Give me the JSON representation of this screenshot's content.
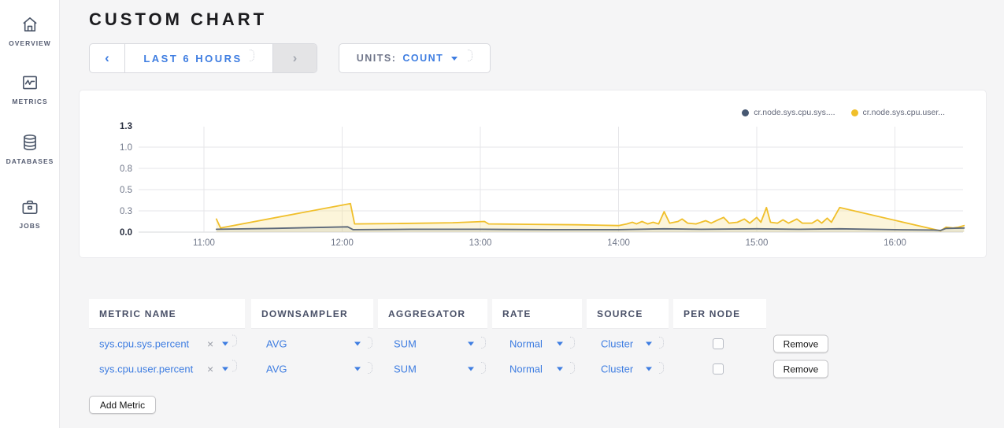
{
  "colors": {
    "accent_blue": "#3e7de1",
    "series_navy": "#475872",
    "series_yellow": "#F0BF2B"
  },
  "icons": {
    "prev": "‹",
    "next": "›",
    "clear": "×"
  },
  "sidebar": {
    "items": [
      {
        "label": "OVERVIEW",
        "icon": "home-icon"
      },
      {
        "label": "METRICS",
        "icon": "metrics-icon"
      },
      {
        "label": "DATABASES",
        "icon": "databases-icon"
      },
      {
        "label": "JOBS",
        "icon": "jobs-icon"
      }
    ]
  },
  "header": {
    "title": "CUSTOM CHART"
  },
  "controls": {
    "time": {
      "label": "LAST 6 HOURS"
    },
    "units": {
      "label": "UNITS:",
      "value": "COUNT"
    }
  },
  "chart_data": {
    "type": "line",
    "title": "",
    "xlabel": "",
    "ylabel": "",
    "ylim": [
      0,
      1.3
    ],
    "grid": true,
    "legend_position": "top-right",
    "x_ticks": [
      "11:00",
      "12:00",
      "13:00",
      "14:00",
      "15:00",
      "16:00"
    ],
    "x_tick_hours": [
      11,
      12,
      13,
      14,
      15,
      16
    ],
    "y_ticks": [
      {
        "v": 1.3,
        "label": "1.3",
        "bold": true,
        "grid": false
      },
      {
        "v": 1.04,
        "label": "1.0",
        "bold": false,
        "grid": true
      },
      {
        "v": 0.78,
        "label": "0.8",
        "bold": false,
        "grid": true
      },
      {
        "v": 0.52,
        "label": "0.5",
        "bold": false,
        "grid": true
      },
      {
        "v": 0.26,
        "label": "0.3",
        "bold": false,
        "grid": true
      },
      {
        "v": 0.0,
        "label": "0.0",
        "bold": true,
        "grid": true
      }
    ],
    "series": [
      {
        "name": "cr.node.sys.cpu.sys....",
        "color": "#5C6879",
        "dot_color": "#475872",
        "fill": "rgba(92,104,121,0.10)",
        "points": [
          [
            11.09,
            0.035
          ],
          [
            11.5,
            0.045
          ],
          [
            12.04,
            0.065
          ],
          [
            12.08,
            0.03
          ],
          [
            12.5,
            0.035
          ],
          [
            13.0,
            0.035
          ],
          [
            13.5,
            0.03
          ],
          [
            14.0,
            0.03
          ],
          [
            14.33,
            0.04
          ],
          [
            14.6,
            0.035
          ],
          [
            15.0,
            0.04
          ],
          [
            15.3,
            0.035
          ],
          [
            15.6,
            0.04
          ],
          [
            16.0,
            0.03
          ],
          [
            16.28,
            0.025
          ],
          [
            16.33,
            0.02
          ],
          [
            16.37,
            0.045
          ],
          [
            16.5,
            0.05
          ]
        ]
      },
      {
        "name": "cr.node.sys.cpu.user...",
        "color": "#F0BF2B",
        "dot_color": "#F0BF2B",
        "fill": "rgba(246,226,148,0.35)",
        "points": [
          [
            11.09,
            0.16
          ],
          [
            11.12,
            0.05
          ],
          [
            12.06,
            0.35
          ],
          [
            12.09,
            0.1
          ],
          [
            12.4,
            0.105
          ],
          [
            12.8,
            0.115
          ],
          [
            13.03,
            0.13
          ],
          [
            13.06,
            0.1
          ],
          [
            13.35,
            0.095
          ],
          [
            13.7,
            0.09
          ],
          [
            14.0,
            0.08
          ],
          [
            14.06,
            0.1
          ],
          [
            14.1,
            0.12
          ],
          [
            14.13,
            0.1
          ],
          [
            14.17,
            0.13
          ],
          [
            14.21,
            0.1
          ],
          [
            14.25,
            0.12
          ],
          [
            14.29,
            0.1
          ],
          [
            14.33,
            0.25
          ],
          [
            14.37,
            0.11
          ],
          [
            14.43,
            0.13
          ],
          [
            14.46,
            0.16
          ],
          [
            14.5,
            0.11
          ],
          [
            14.56,
            0.1
          ],
          [
            14.63,
            0.14
          ],
          [
            14.67,
            0.11
          ],
          [
            14.72,
            0.15
          ],
          [
            14.76,
            0.18
          ],
          [
            14.8,
            0.11
          ],
          [
            14.86,
            0.12
          ],
          [
            14.91,
            0.16
          ],
          [
            14.95,
            0.11
          ],
          [
            15.0,
            0.18
          ],
          [
            15.03,
            0.12
          ],
          [
            15.07,
            0.3
          ],
          [
            15.1,
            0.12
          ],
          [
            15.15,
            0.11
          ],
          [
            15.19,
            0.15
          ],
          [
            15.23,
            0.11
          ],
          [
            15.29,
            0.16
          ],
          [
            15.33,
            0.11
          ],
          [
            15.4,
            0.11
          ],
          [
            15.44,
            0.15
          ],
          [
            15.47,
            0.11
          ],
          [
            15.51,
            0.17
          ],
          [
            15.54,
            0.12
          ],
          [
            15.57,
            0.21
          ],
          [
            15.6,
            0.3
          ],
          [
            16.33,
            0.015
          ],
          [
            16.37,
            0.06
          ],
          [
            16.42,
            0.05
          ],
          [
            16.46,
            0.06
          ],
          [
            16.5,
            0.08
          ]
        ]
      }
    ]
  },
  "table": {
    "columns": [
      "METRIC NAME",
      "DOWNSAMPLER",
      "AGGREGATOR",
      "RATE",
      "SOURCE",
      "PER NODE"
    ],
    "rows": [
      {
        "metric": "sys.cpu.sys.percent",
        "downsampler": "AVG",
        "aggregator": "SUM",
        "rate": "Normal",
        "source": "Cluster",
        "per_node": false,
        "remove_label": "Remove"
      },
      {
        "metric": "sys.cpu.user.percent",
        "downsampler": "AVG",
        "aggregator": "SUM",
        "rate": "Normal",
        "source": "Cluster",
        "per_node": false,
        "remove_label": "Remove"
      }
    ],
    "add_button": "Add Metric"
  }
}
